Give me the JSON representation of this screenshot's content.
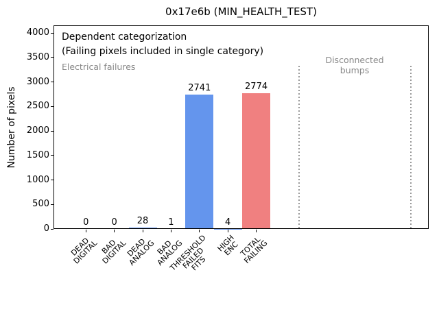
{
  "chart_data": {
    "type": "bar",
    "title": "0x17e6b (MIN_HEALTH_TEST)",
    "ylabel": "Number of pixels",
    "xlabel": "",
    "categories": [
      "DEAD\nDIGITAL",
      "BAD\nDIGITAL",
      "DEAD\nANALOG",
      "BAD\nANALOG",
      "THRESHOLD\nFAILED\nFITS",
      "HIGH\nENC",
      "TOTAL\nFAILING"
    ],
    "values": [
      0,
      0,
      28,
      1,
      2741,
      4,
      2774
    ],
    "bar_value_labels": [
      "0",
      "0",
      "28",
      "1",
      "2741",
      "4",
      "2774"
    ],
    "bar_colors": [
      "#6495ED",
      "#6495ED",
      "#6495ED",
      "#6495ED",
      "#6495ED",
      "#6495ED",
      "#F08080"
    ],
    "yticks": [
      0,
      500,
      1000,
      1500,
      2000,
      2500,
      3000,
      3500,
      4000
    ],
    "ylim": [
      0,
      4155
    ],
    "grid": false,
    "legend": "none",
    "annotations": [
      {
        "id": "dependent-line1",
        "text": "Dependent categorization",
        "color": "#000000"
      },
      {
        "id": "dependent-line2",
        "text": "(Failing pixels included in single category)",
        "color": "#000000"
      },
      {
        "id": "electrical",
        "text": "Electrical failures",
        "color": "#888888"
      },
      {
        "id": "disconnected",
        "text": "Disconnected\nbumps",
        "color": "#888888"
      }
    ],
    "separators": {
      "style": "dotted",
      "color": "#999999",
      "x_axis_units": [
        7.5,
        11.45
      ],
      "ymax_fraction": 0.8
    }
  },
  "colors": {
    "background": "#ffffff",
    "axis": "#000000",
    "bar_blue": "#6495ED",
    "bar_red": "#F08080",
    "muted_text": "#888888"
  }
}
